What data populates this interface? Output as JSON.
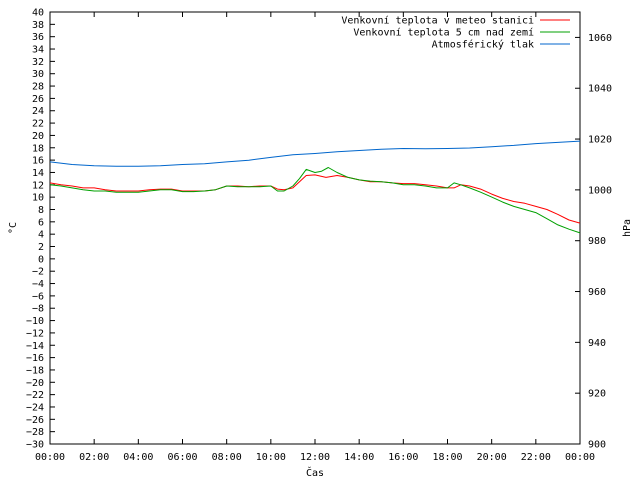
{
  "chart_data": {
    "type": "line",
    "xlabel": "Čas",
    "ylabel": "°C",
    "y2label": "hPa",
    "x_ticks": [
      "00:00",
      "02:00",
      "04:00",
      "06:00",
      "08:00",
      "10:00",
      "12:00",
      "14:00",
      "16:00",
      "18:00",
      "20:00",
      "22:00",
      "00:00"
    ],
    "xlim": [
      0,
      24
    ],
    "ylim": [
      -30,
      40
    ],
    "y_step": 2,
    "y2lim": [
      900,
      1070
    ],
    "y2_ticks": [
      900,
      920,
      940,
      960,
      980,
      1000,
      1020,
      1040,
      1060
    ],
    "grid": false,
    "legend_position": "top-right",
    "series": [
      {
        "name": "Venkovní teplota v meteo stanici",
        "color": "#ff0000",
        "axis": "left",
        "x": [
          0,
          0.5,
          1,
          1.5,
          2,
          2.5,
          3,
          3.5,
          4,
          4.5,
          5,
          5.5,
          6,
          6.5,
          7,
          7.5,
          8,
          8.5,
          9,
          9.5,
          10,
          10.3,
          10.6,
          11,
          11.3,
          11.6,
          12,
          12.5,
          13,
          13.5,
          14,
          14.5,
          15,
          15.5,
          16,
          16.5,
          17,
          17.5,
          18,
          18.3,
          18.6,
          19,
          19.5,
          20,
          20.5,
          21,
          21.5,
          22,
          22.5,
          23,
          23.5,
          24
        ],
        "values": [
          12.3,
          12.0,
          11.8,
          11.5,
          11.5,
          11.2,
          11.0,
          11.0,
          11.0,
          11.2,
          11.3,
          11.3,
          11.0,
          11.0,
          11.0,
          11.2,
          11.8,
          11.8,
          11.7,
          11.8,
          11.8,
          11.3,
          11.2,
          11.5,
          12.5,
          13.5,
          13.6,
          13.2,
          13.5,
          13.2,
          12.8,
          12.5,
          12.5,
          12.3,
          12.2,
          12.2,
          12.0,
          11.8,
          11.5,
          11.5,
          12.0,
          11.8,
          11.3,
          10.5,
          9.8,
          9.3,
          9.0,
          8.5,
          8.0,
          7.2,
          6.3,
          5.8
        ]
      },
      {
        "name": "Venkovní teplota 5 cm nad zemí",
        "color": "#00a000",
        "axis": "left",
        "x": [
          0,
          0.5,
          1,
          1.5,
          2,
          2.5,
          3,
          3.5,
          4,
          4.5,
          5,
          5.5,
          6,
          6.5,
          7,
          7.5,
          8,
          8.5,
          9,
          9.5,
          10,
          10.3,
          10.6,
          11,
          11.3,
          11.6,
          12,
          12.3,
          12.6,
          13,
          13.5,
          14,
          14.5,
          15,
          15.5,
          16,
          16.5,
          17,
          17.5,
          18,
          18.3,
          18.6,
          19,
          19.5,
          20,
          20.5,
          21,
          21.5,
          22,
          22.5,
          23,
          23.5,
          24
        ],
        "values": [
          12.0,
          11.8,
          11.5,
          11.2,
          11.0,
          11.0,
          10.8,
          10.8,
          10.8,
          11.0,
          11.2,
          11.2,
          10.9,
          10.9,
          11.0,
          11.2,
          11.8,
          11.7,
          11.7,
          11.7,
          11.8,
          11.0,
          11.0,
          11.8,
          13.0,
          14.5,
          14.0,
          14.2,
          14.8,
          14.0,
          13.2,
          12.8,
          12.6,
          12.5,
          12.3,
          12.0,
          12.0,
          11.8,
          11.5,
          11.5,
          12.3,
          12.0,
          11.5,
          10.8,
          10.0,
          9.2,
          8.5,
          8.0,
          7.5,
          6.5,
          5.5,
          4.8,
          4.2
        ]
      },
      {
        "name": "Atmosférický tlak",
        "color": "#0066cc",
        "axis": "right",
        "x": [
          0,
          1,
          2,
          3,
          4,
          5,
          6,
          7,
          8,
          9,
          10,
          11,
          12,
          13,
          14,
          15,
          16,
          17,
          18,
          19,
          20,
          21,
          22,
          23,
          24
        ],
        "values": [
          1011,
          1010,
          1009.5,
          1009.3,
          1009.3,
          1009.5,
          1010,
          1010.3,
          1011,
          1011.7,
          1012.8,
          1013.8,
          1014.3,
          1015,
          1015.5,
          1016,
          1016.3,
          1016.2,
          1016.3,
          1016.5,
          1017,
          1017.5,
          1018.2,
          1018.7,
          1019.2
        ]
      }
    ]
  }
}
